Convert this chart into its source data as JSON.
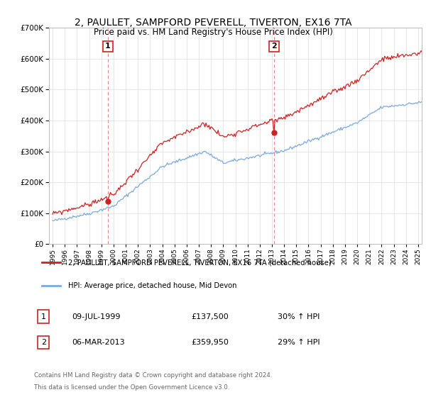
{
  "title": "2, PAULLET, SAMPFORD PEVERELL, TIVERTON, EX16 7TA",
  "subtitle": "Price paid vs. HM Land Registry's House Price Index (HPI)",
  "legend_line1": "2, PAULLET, SAMPFORD PEVERELL, TIVERTON, EX16 7TA (detached house)",
  "legend_line2": "HPI: Average price, detached house, Mid Devon",
  "footer1": "Contains HM Land Registry data © Crown copyright and database right 2024.",
  "footer2": "This data is licensed under the Open Government Licence v3.0.",
  "table_rows": [
    {
      "num": "1",
      "date": "09-JUL-1999",
      "price": "£137,500",
      "change": "30% ↑ HPI"
    },
    {
      "num": "2",
      "date": "06-MAR-2013",
      "price": "£359,950",
      "change": "29% ↑ HPI"
    }
  ],
  "sale1_year": 1999.53,
  "sale1_price": 137500,
  "sale2_year": 2013.17,
  "sale2_price": 359950,
  "hpi_color": "#7aaadd",
  "price_color": "#cc2222",
  "dashed_color": "#dd6666",
  "background": "#ffffff",
  "grid_color": "#dddddd",
  "ylim": [
    0,
    700000
  ],
  "xlim_start": 1994.7,
  "xlim_end": 2025.3,
  "title_fontsize": 10,
  "subtitle_fontsize": 9
}
